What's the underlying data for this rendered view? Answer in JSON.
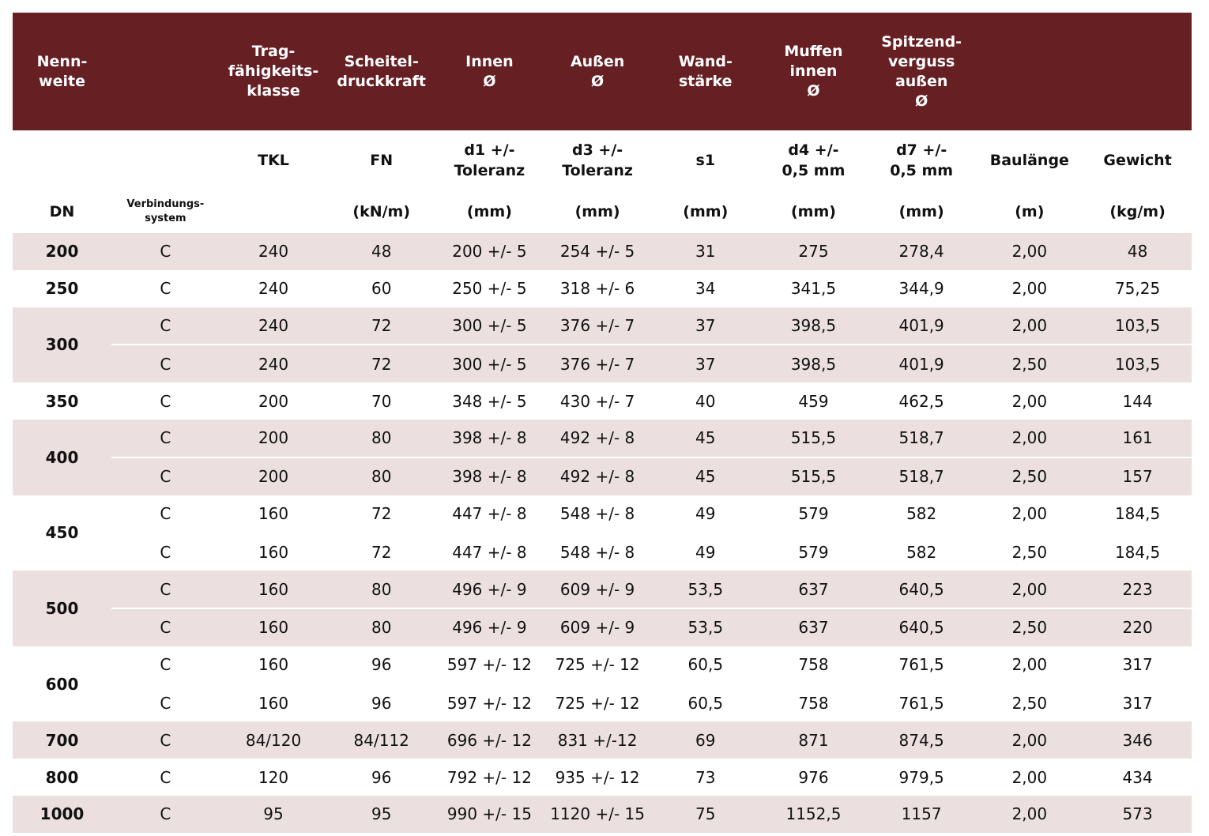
{
  "table": {
    "header_top": [
      "Nenn-\nweite",
      null,
      "Trag-\nfähigkeits-\nklasse",
      "Scheitel-\ndruckkraft",
      "Innen\nØ",
      "Außen\nØ",
      "Wand-\nstärke",
      "Muffen\ninnen\nØ",
      "Spitzend-\nverguss\naußen\nØ",
      null,
      null
    ],
    "header_mid": [
      null,
      null,
      "TKL",
      "FN",
      "d1 +/-\nToleranz",
      "d3 +/-\nToleranz",
      "s1",
      "d4   +/-\n0,5 mm",
      "d7   +/-\n0,5 mm",
      "Baulänge",
      "Gewicht"
    ],
    "header_units": [
      "DN",
      "Verbindungs-\nsystem",
      null,
      "(kN/m)",
      "(mm)",
      "(mm)",
      "(mm)",
      "(mm)",
      "(mm)",
      "(m)",
      "(kg/m)"
    ],
    "groups": [
      {
        "dn": "200",
        "rows": [
          [
            "C",
            "240",
            "48",
            "200 +/- 5",
            "254 +/- 5",
            "31",
            "275",
            "278,4",
            "2,00",
            "48"
          ]
        ]
      },
      {
        "dn": "250",
        "rows": [
          [
            "C",
            "240",
            "60",
            "250 +/- 5",
            "318 +/- 6",
            "34",
            "341,5",
            "344,9",
            "2,00",
            "75,25"
          ]
        ]
      },
      {
        "dn": "300",
        "rows": [
          [
            "C",
            "240",
            "72",
            "300 +/- 5",
            "376 +/- 7",
            "37",
            "398,5",
            "401,9",
            "2,00",
            "103,5"
          ],
          [
            "C",
            "240",
            "72",
            "300 +/- 5",
            "376 +/- 7",
            "37",
            "398,5",
            "401,9",
            "2,50",
            "103,5"
          ]
        ]
      },
      {
        "dn": "350",
        "rows": [
          [
            "C",
            "200",
            "70",
            "348 +/- 5",
            "430 +/- 7",
            "40",
            "459",
            "462,5",
            "2,00",
            "144"
          ]
        ]
      },
      {
        "dn": "400",
        "rows": [
          [
            "C",
            "200",
            "80",
            "398 +/- 8",
            "492 +/- 8",
            "45",
            "515,5",
            "518,7",
            "2,00",
            "161"
          ],
          [
            "C",
            "200",
            "80",
            "398 +/- 8",
            "492 +/- 8",
            "45",
            "515,5",
            "518,7",
            "2,50",
            "157"
          ]
        ]
      },
      {
        "dn": "450",
        "rows": [
          [
            "C",
            "160",
            "72",
            "447 +/- 8",
            "548 +/- 8",
            "49",
            "579",
            "582",
            "2,00",
            "184,5"
          ],
          [
            "C",
            "160",
            "72",
            "447 +/- 8",
            "548 +/- 8",
            "49",
            "579",
            "582",
            "2,50",
            "184,5"
          ]
        ]
      },
      {
        "dn": "500",
        "rows": [
          [
            "C",
            "160",
            "80",
            "496 +/- 9",
            "609 +/- 9",
            "53,5",
            "637",
            "640,5",
            "2,00",
            "223"
          ],
          [
            "C",
            "160",
            "80",
            "496 +/- 9",
            "609 +/- 9",
            "53,5",
            "637",
            "640,5",
            "2,50",
            "220"
          ]
        ]
      },
      {
        "dn": "600",
        "rows": [
          [
            "C",
            "160",
            "96",
            "597 +/- 12",
            "725 +/- 12",
            "60,5",
            "758",
            "761,5",
            "2,00",
            "317"
          ],
          [
            "C",
            "160",
            "96",
            "597 +/- 12",
            "725 +/- 12",
            "60,5",
            "758",
            "761,5",
            "2,50",
            "317"
          ]
        ]
      },
      {
        "dn": "700",
        "rows": [
          [
            "C",
            "84/120",
            "84/112",
            "696 +/- 12",
            "831 +/-12",
            "69",
            "871",
            "874,5",
            "2,00",
            "346"
          ]
        ]
      },
      {
        "dn": "800",
        "rows": [
          [
            "C",
            "120",
            "96",
            "792 +/- 12",
            "935 +/- 12",
            "73",
            "976",
            "979,5",
            "2,00",
            "434"
          ]
        ]
      },
      {
        "dn": "1000",
        "rows": [
          [
            "C",
            "95",
            "95",
            "990 +/- 15",
            "1120 +/- 15",
            "75",
            "1152,5",
            "1157",
            "2,00",
            "573"
          ]
        ]
      }
    ]
  }
}
